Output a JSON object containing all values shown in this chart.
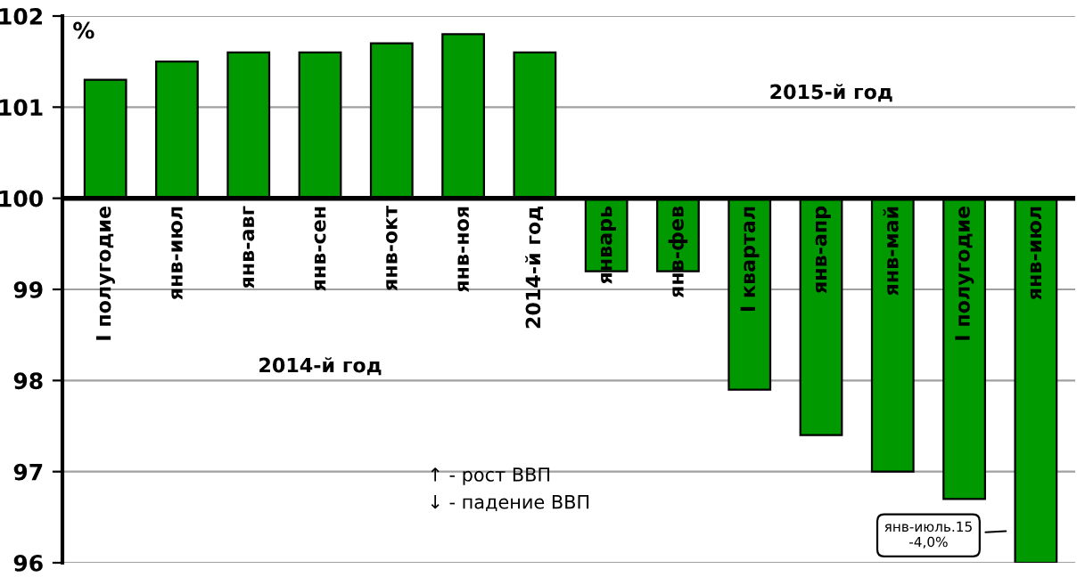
{
  "chart_data": {
    "type": "bar",
    "ylabel": "%",
    "categories": [
      "I полугодие",
      "янв-июл",
      "янв-авг",
      "янв-сен",
      "янв-окт",
      "янв-ноя",
      "2014-й год",
      "январь",
      "янв-фев",
      "I квартал",
      "янв-апр",
      "янв-май",
      "I полугодие",
      "янв-июл"
    ],
    "values": [
      1.3,
      1.5,
      1.6,
      1.6,
      1.7,
      1.8,
      1.6,
      -0.8,
      -0.8,
      -2.1,
      -2.6,
      -3.0,
      -3.3,
      -4.0
    ],
    "base": [
      100,
      100,
      100,
      100,
      100,
      100,
      100,
      100,
      100,
      100,
      100,
      100,
      100,
      100
    ],
    "color": "#009900",
    "ylim": [
      96,
      102
    ],
    "yticks": [
      96,
      97,
      98,
      99,
      100,
      101,
      102
    ],
    "grid": "y",
    "annotations": [
      "2015-й год",
      "2014-й год",
      "↑ - рост ВВП",
      "↓ - падение ВВП",
      "янв-июль.15\n-4,0%"
    ]
  }
}
